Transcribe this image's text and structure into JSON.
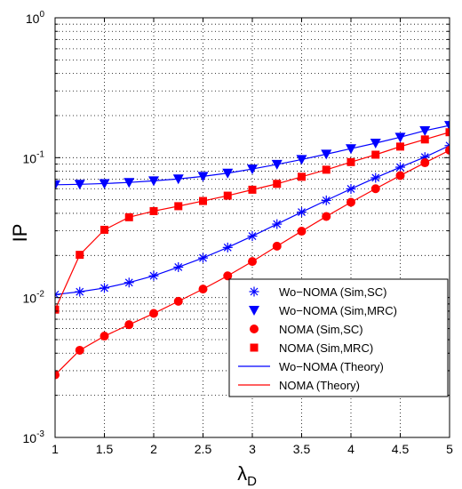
{
  "chart_data": {
    "type": "line",
    "xlabel": "λ",
    "xlabel_sub": "D",
    "ylabel": "IP",
    "xlim": [
      1,
      5
    ],
    "ylim": [
      0.001,
      1
    ],
    "yscale": "log",
    "grid": true,
    "legend_position": "bottom-right",
    "x": [
      1,
      1.25,
      1.5,
      1.75,
      2,
      2.25,
      2.5,
      2.75,
      3,
      3.25,
      3.5,
      3.75,
      4,
      4.25,
      4.5,
      4.75,
      5
    ],
    "xticks": [
      "1",
      "1.5",
      "2",
      "2.5",
      "3",
      "3.5",
      "4",
      "4.5",
      "5"
    ],
    "yticks": [
      {
        "base": "10",
        "exp": "-3"
      },
      {
        "base": "10",
        "exp": "-2"
      },
      {
        "base": "10",
        "exp": "-1"
      },
      {
        "base": "10",
        "exp": "0"
      }
    ],
    "series": [
      {
        "name": "Wo−NOMA (Sim,SC)",
        "marker": "star",
        "color": "#0000ff",
        "line": false,
        "values": [
          0.0105,
          0.011,
          0.0117,
          0.0128,
          0.0143,
          0.0165,
          0.0192,
          0.0228,
          0.0275,
          0.0335,
          0.0408,
          0.0495,
          0.0598,
          0.0718,
          0.0855,
          0.101,
          0.122
        ]
      },
      {
        "name": "Wo−NOMA (Sim,MRC)",
        "marker": "triangle-down",
        "color": "#0000ff",
        "line": false,
        "values": [
          0.064,
          0.0645,
          0.0653,
          0.0665,
          0.0683,
          0.0705,
          0.0735,
          0.0775,
          0.083,
          0.0895,
          0.097,
          0.106,
          0.116,
          0.127,
          0.14,
          0.156,
          0.17
        ]
      },
      {
        "name": "NOMA (Sim,SC)",
        "marker": "circle",
        "color": "#ff0000",
        "line": false,
        "values": [
          0.0028,
          0.0042,
          0.0053,
          0.0064,
          0.0077,
          0.0094,
          0.0115,
          0.0143,
          0.0181,
          0.0233,
          0.0298,
          0.038,
          0.048,
          0.06,
          0.0745,
          0.092,
          0.113
        ]
      },
      {
        "name": "NOMA (Sim,MRC)",
        "marker": "square",
        "color": "#ff0000",
        "line": false,
        "values": [
          0.0082,
          0.0202,
          0.0305,
          0.0375,
          0.0415,
          0.045,
          0.049,
          0.0535,
          0.059,
          0.065,
          0.073,
          0.082,
          0.093,
          0.105,
          0.12,
          0.135,
          0.152
        ]
      },
      {
        "name": "Wo−NOMA (Theory)",
        "marker": "none",
        "color": "#0000ff",
        "line": true,
        "x": [
          1,
          1.25,
          1.5,
          1.75,
          2,
          2.25,
          2.5,
          2.75,
          3,
          3.25,
          3.5,
          3.75,
          4,
          4.25,
          4.5,
          4.75,
          5
        ],
        "values": [
          0.0105,
          0.011,
          0.0117,
          0.0128,
          0.0143,
          0.0165,
          0.0192,
          0.0228,
          0.0275,
          0.0335,
          0.0408,
          0.0495,
          0.0598,
          0.0718,
          0.0855,
          0.101,
          0.122
        ],
        "x2": [
          1,
          1.25,
          1.5,
          1.75,
          2,
          2.25,
          2.5,
          2.75,
          3,
          3.25,
          3.5,
          3.75,
          4,
          4.25,
          4.5,
          4.75,
          5
        ],
        "values2": [
          0.064,
          0.0645,
          0.0653,
          0.0665,
          0.0683,
          0.0705,
          0.0735,
          0.0775,
          0.083,
          0.0895,
          0.097,
          0.106,
          0.116,
          0.127,
          0.14,
          0.156,
          0.17
        ]
      },
      {
        "name": "NOMA (Theory)",
        "marker": "none",
        "color": "#ff0000",
        "line": true,
        "x": [
          1,
          1.25,
          1.5,
          1.75,
          2,
          2.25,
          2.5,
          2.75,
          3,
          3.25,
          3.5,
          3.75,
          4,
          4.25,
          4.5,
          4.75,
          5
        ],
        "values": [
          0.0028,
          0.0042,
          0.0053,
          0.0064,
          0.0077,
          0.0094,
          0.0115,
          0.0143,
          0.0181,
          0.0233,
          0.0298,
          0.038,
          0.048,
          0.06,
          0.0745,
          0.092,
          0.113
        ],
        "x2": [
          1,
          1.25,
          1.5,
          1.75,
          2,
          2.25,
          2.5,
          2.75,
          3,
          3.25,
          3.5,
          3.75,
          4,
          4.25,
          4.5,
          4.75,
          5
        ],
        "values2": [
          0.0082,
          0.0202,
          0.0305,
          0.0375,
          0.0415,
          0.045,
          0.049,
          0.0535,
          0.059,
          0.065,
          0.073,
          0.082,
          0.093,
          0.105,
          0.12,
          0.135,
          0.152
        ]
      }
    ]
  }
}
